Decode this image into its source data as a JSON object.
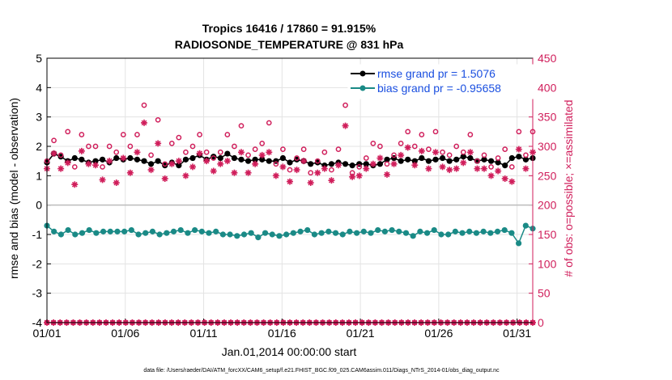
{
  "chart_data": {
    "type": "line",
    "title": "Tropics 16416 / 17860 = 91.915%",
    "subtitle": "RADIOSONDE_TEMPERATURE @ 831 hPa",
    "xlabel": "Jan.01,2014 00:00:00 start",
    "ylabel_left": "rmse and bias (model - observation)",
    "ylabel_right": "# of obs: o=possible; ×=assimilated",
    "footnote": "data file: /Users/raeder/DAI/ATM_forcXX/CAM6_setup/f.e21.FHIST_BGC.f09_025.CAM6assim.011/Diags_NTrS_2014-01/obs_diag_output.nc",
    "x_range_days": [
      0,
      31
    ],
    "y_left_range": [
      -4,
      5
    ],
    "y_right_range": [
      0,
      450
    ],
    "x_ticks": [
      {
        "day": 0,
        "label": "01/01"
      },
      {
        "day": 5,
        "label": "01/06"
      },
      {
        "day": 10,
        "label": "01/11"
      },
      {
        "day": 15,
        "label": "01/16"
      },
      {
        "day": 20,
        "label": "01/21"
      },
      {
        "day": 25,
        "label": "01/26"
      },
      {
        "day": 30,
        "label": "01/31"
      }
    ],
    "y_left_ticks": [
      "5",
      "4",
      "3",
      "2",
      "1",
      "0",
      "-1",
      "-2",
      "-3",
      "-4"
    ],
    "y_right_ticks": [
      "450",
      "400",
      "350",
      "300",
      "250",
      "200",
      "150",
      "100",
      "50",
      "0"
    ],
    "grid": true,
    "legend_position": "top-right",
    "series": [
      {
        "name": "rmse grand pr = 1.5076",
        "axis": "left",
        "color": "#000000",
        "marker": "filled-circle",
        "values": [
          1.45,
          1.75,
          1.65,
          1.5,
          1.6,
          1.55,
          1.45,
          1.5,
          1.55,
          1.45,
          1.6,
          1.55,
          1.6,
          1.55,
          1.5,
          1.4,
          1.5,
          1.35,
          1.45,
          1.35,
          1.55,
          1.6,
          1.7,
          1.55,
          1.65,
          1.6,
          1.75,
          1.6,
          1.55,
          1.5,
          1.55,
          1.55,
          1.5,
          1.5,
          1.6,
          1.45,
          1.55,
          1.5,
          1.4,
          1.45,
          1.35,
          1.4,
          1.45,
          1.4,
          1.35,
          1.4,
          1.4,
          1.35,
          1.4,
          1.55,
          1.6,
          1.5,
          1.55,
          1.5,
          1.6,
          1.5,
          1.55,
          1.6,
          1.5,
          1.55,
          1.65,
          1.6,
          1.5,
          1.55,
          1.5,
          1.45,
          1.35,
          1.6,
          1.65,
          1.55,
          1.6
        ]
      },
      {
        "name": "bias grand pr = -0.95658",
        "axis": "left",
        "color": "#1a8a86",
        "marker": "filled-circle",
        "values": [
          -0.7,
          -0.9,
          -1.0,
          -0.85,
          -1.0,
          -0.95,
          -0.85,
          -0.95,
          -0.9,
          -0.9,
          -0.9,
          -0.9,
          -0.85,
          -1.0,
          -0.95,
          -0.9,
          -1.0,
          -0.95,
          -0.9,
          -0.85,
          -0.95,
          -0.85,
          -0.9,
          -0.95,
          -0.9,
          -1.0,
          -1.0,
          -1.05,
          -1.0,
          -0.95,
          -1.1,
          -0.95,
          -1.0,
          -1.05,
          -1.0,
          -0.95,
          -0.9,
          -0.85,
          -1.0,
          -0.95,
          -0.9,
          -0.95,
          -1.0,
          -0.9,
          -0.95,
          -0.9,
          -0.95,
          -0.85,
          -0.9,
          -0.85,
          -0.9,
          -0.95,
          -1.05,
          -0.9,
          -0.95,
          -0.85,
          -1.0,
          -1.0,
          -0.9,
          -0.95,
          -0.9,
          -0.95,
          -0.9,
          -0.95,
          -0.9,
          -0.85,
          -0.95,
          -1.3,
          -0.7,
          -0.8
        ]
      },
      {
        "name": "possible",
        "axis": "right",
        "color": "#d01e5b",
        "marker": "open-circle",
        "values": [
          275,
          310,
          285,
          325,
          265,
          320,
          300,
          300,
          265,
          300,
          290,
          320,
          300,
          320,
          370,
          285,
          345,
          270,
          305,
          315,
          290,
          300,
          320,
          290,
          280,
          290,
          320,
          300,
          335,
          285,
          295,
          305,
          340,
          270,
          295,
          260,
          280,
          295,
          255,
          275,
          290,
          260,
          295,
          370,
          255,
          265,
          280,
          305,
          300,
          270,
          285,
          305,
          325,
          300,
          320,
          295,
          325,
          290,
          285,
          300,
          290,
          320,
          275,
          285,
          265,
          280,
          295,
          265,
          325,
          285,
          325
        ]
      },
      {
        "name": "assimilated",
        "axis": "right",
        "color": "#d01e5b",
        "marker": "asterisk",
        "values": [
          262,
          288,
          262,
          272,
          235,
          292,
          270,
          268,
          243,
          275,
          238,
          280,
          255,
          290,
          340,
          260,
          305,
          245,
          270,
          275,
          250,
          265,
          288,
          275,
          258,
          270,
          275,
          255,
          290,
          255,
          270,
          285,
          290,
          250,
          265,
          240,
          260,
          275,
          238,
          255,
          262,
          242,
          268,
          335,
          248,
          250,
          262,
          270,
          280,
          252,
          270,
          285,
          298,
          268,
          292,
          262,
          290,
          265,
          260,
          262,
          272,
          290,
          262,
          262,
          250,
          258,
          245,
          240,
          295,
          262,
          290
        ]
      },
      {
        "name": "possible-zero",
        "axis": "right",
        "color": "#d01e5b",
        "marker": "open-circle",
        "values": [
          0,
          0,
          0,
          0,
          0,
          0,
          0,
          0,
          0,
          0,
          0,
          0,
          0,
          0,
          0,
          0,
          0,
          0,
          0,
          0,
          0,
          0,
          0,
          0,
          0,
          0,
          0,
          0,
          0,
          0,
          0,
          0,
          0,
          0,
          0,
          0,
          0,
          0,
          0,
          0,
          0,
          0,
          0,
          0,
          0,
          0,
          0,
          0,
          0,
          0,
          0,
          0,
          0,
          0,
          0,
          0,
          0,
          0,
          0,
          0,
          0,
          0,
          0,
          0,
          0,
          0,
          0,
          0,
          0,
          0,
          0,
          0,
          0,
          0,
          0
        ]
      },
      {
        "name": "assimilated-zero",
        "axis": "right",
        "color": "#d01e5b",
        "marker": "asterisk",
        "values": [
          0,
          0,
          0,
          0,
          0,
          0,
          0,
          0,
          0,
          0,
          0,
          0,
          0,
          0,
          0,
          0,
          0,
          0,
          0,
          0,
          0,
          0,
          0,
          0,
          0,
          0,
          0,
          0,
          0,
          0,
          0,
          0,
          0,
          0,
          0,
          0,
          0,
          0,
          0,
          0,
          0,
          0,
          0,
          0,
          0,
          0,
          0,
          0,
          0,
          0,
          0,
          0,
          0,
          0,
          0,
          0,
          0,
          0,
          0,
          0,
          0,
          0,
          0,
          0,
          0,
          0,
          0,
          0,
          0,
          0,
          0,
          0,
          0,
          0,
          0
        ]
      }
    ]
  }
}
